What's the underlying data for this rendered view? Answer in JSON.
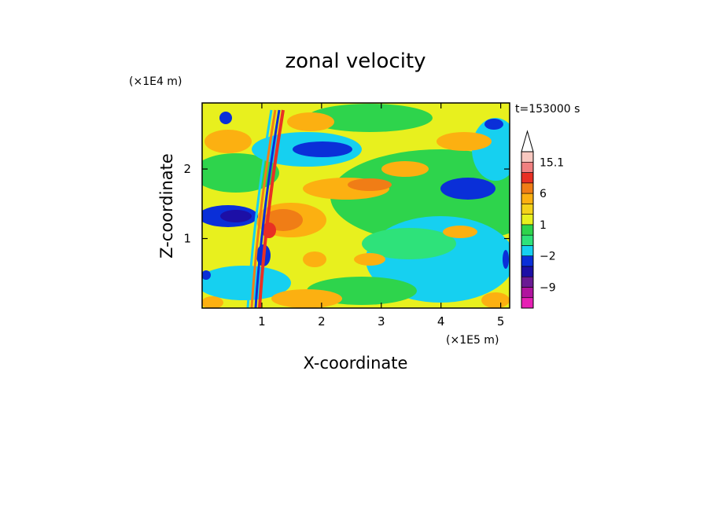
{
  "chart_data": {
    "type": "heatmap",
    "title": "zonal velocity",
    "xlabel": "X-coordinate",
    "ylabel": "Z-coordinate",
    "x_unit": "(×1E5 m)",
    "y_unit": "(×1E4 m)",
    "time_label": "t=153000 s",
    "xlim": [
      0,
      5.15
    ],
    "ylim": [
      0,
      2.95
    ],
    "x_ticks": [
      1,
      2,
      3,
      4,
      5
    ],
    "x_tick_labels": [
      "1",
      "2",
      "3",
      "4",
      "5"
    ],
    "y_ticks": [
      1,
      2
    ],
    "y_tick_labels": [
      "1",
      "2"
    ],
    "grid": false,
    "colorbar": {
      "levels": [
        -15,
        -12,
        -9,
        -6,
        -4,
        -2,
        -1,
        0,
        1,
        2,
        4,
        6,
        9,
        12,
        15.1
      ],
      "tick_labels": [
        {
          "value": 15.1,
          "label": "15.1"
        },
        {
          "value": 6,
          "label": "6"
        },
        {
          "value": 1,
          "label": "1"
        },
        {
          "value": -2,
          "label": "−2"
        },
        {
          "value": -9,
          "label": "−9"
        }
      ],
      "colors": [
        "#e620b4",
        "#b0149e",
        "#6a1a94",
        "#1c0fa6",
        "#0a2fd8",
        "#16d0f0",
        "#2ee27a",
        "#2ed44c",
        "#e8f01e",
        "#f4d21a",
        "#fcb011",
        "#f07d16",
        "#e83024",
        "#f08080",
        "#f8c8c0"
      ],
      "extend_max": true
    }
  }
}
